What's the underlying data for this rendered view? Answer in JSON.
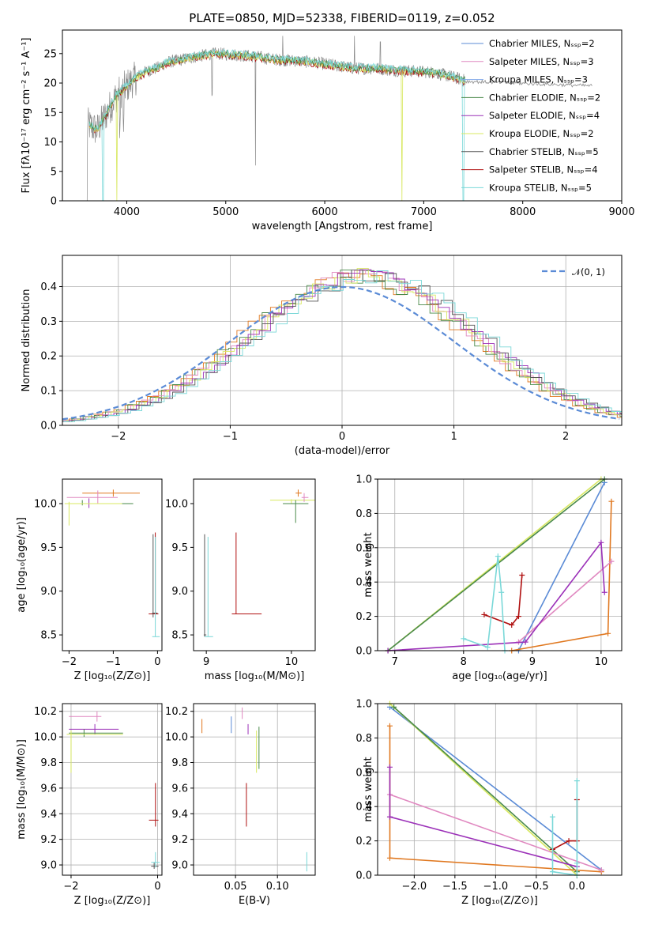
{
  "title": "PLATE=0850, MJD=52338, FIBERID=0119, z=0.052",
  "colors": {
    "chabrier_miles": "#5b8bd6",
    "salpeter_miles": "#e088c0",
    "kroupa_miles": "#7fa6e8",
    "chabrier_elodie": "#4a8a4a",
    "salpeter_elodie": "#9b30b8",
    "kroupa_elodie": "#d8e860",
    "chabrier_stelib": "#555555",
    "salpeter_stelib": "#b01010",
    "kroupa_stelib": "#7ad8d8",
    "data_gray": "#8a8a8a",
    "orange": "#e07820",
    "gaussian": "#5b8bd6"
  },
  "chart_data": [
    {
      "type": "line",
      "panel": "spectrum",
      "xlabel": "wavelength [Angstrom, rest frame]",
      "ylabel": "Flux [fλ10⁻¹⁷ erg cm⁻² s⁻¹ A⁻¹]",
      "xlim": [
        3350,
        9000
      ],
      "ylim": [
        0,
        29
      ],
      "xticks": [
        "4000",
        "5000",
        "6000",
        "7000",
        "8000",
        "9000"
      ],
      "yticks": [
        "0",
        "5",
        "10",
        "15",
        "20",
        "25"
      ],
      "legend_location": "top-right",
      "legend": [
        "Chabrier MILES, Nₛₛₚ=2",
        "Salpeter MILES, Nₛₛₚ=3",
        "Kroupa MILES, Nₛₛₚ=3",
        "Chabrier ELODIE, Nₛₛₚ=2",
        "Salpeter ELODIE, Nₛₛₚ=4",
        "Kroupa ELODIE, Nₛₛₚ=2",
        "Chabrier STELIB, Nₛₛₚ=5",
        "Salpeter STELIB, Nₛₛₚ=4",
        "Kroupa STELIB, Nₛₛₚ=5"
      ],
      "x": [
        3600,
        3700,
        3800,
        3900,
        4000,
        4100,
        4200,
        4300,
        4400,
        4500,
        4700,
        4900,
        5100,
        5300,
        5500,
        5700,
        5900,
        6100,
        6300,
        6500,
        6700,
        6900,
        7100,
        7300,
        7400
      ],
      "y": [
        13,
        12,
        15,
        18,
        19.5,
        21,
        22,
        22.5,
        23.5,
        23.8,
        24.5,
        25,
        24.8,
        24.5,
        24,
        23.8,
        23.5,
        23,
        22.5,
        22.5,
        22.2,
        22,
        21.8,
        21,
        20.5
      ]
    },
    {
      "type": "line",
      "panel": "residual-distribution",
      "xlabel": "(data-model)/error",
      "ylabel": "Normed distribution",
      "xlim": [
        -2.5,
        2.5
      ],
      "ylim": [
        0,
        0.49
      ],
      "xticks": [
        "−2",
        "−1",
        "0",
        "1",
        "2"
      ],
      "yticks": [
        "0.0",
        "0.1",
        "0.2",
        "0.3",
        "0.4"
      ],
      "legend_location": "top-right",
      "legend": [
        "𝒩(0, 1)"
      ],
      "series_gaussian": {
        "mean": 0,
        "sigma": 1
      }
    },
    {
      "type": "scatter",
      "panel": "age-vs-Z",
      "xlabel": "Z [log₁₀(Z/Z⊙)]",
      "ylabel": "age  [log₁₀(age/yr)]",
      "xlim": [
        -2.15,
        0.1
      ],
      "ylim": [
        8.32,
        10.28
      ],
      "xticks": [
        "−2",
        "−1",
        "0"
      ],
      "yticks": [
        "8.5",
        "9.0",
        "9.5",
        "10.0"
      ]
    },
    {
      "type": "scatter",
      "panel": "age-vs-mass",
      "xlabel": "mass [log₁₀(M/M⊙)]",
      "xlim": [
        8.85,
        10.28
      ],
      "ylim": [
        8.32,
        10.28
      ],
      "xticks": [
        "9",
        "10"
      ],
      "yticks": [
        "8.5",
        "9.0",
        "9.5",
        "10.0"
      ]
    },
    {
      "type": "line",
      "panel": "massweight-vs-age",
      "xlabel": "age  [log₁₀(age/yr)]",
      "ylabel": "mass weight",
      "xlim": [
        6.75,
        10.3
      ],
      "ylim": [
        0,
        1
      ],
      "xticks": [
        "7",
        "8",
        "9",
        "10"
      ],
      "yticks": [
        "0.0",
        "0.2",
        "0.4",
        "0.6",
        "0.8",
        "1.0"
      ]
    },
    {
      "type": "scatter",
      "panel": "mass-vs-Z",
      "xlabel": "Z [log₁₀(Z/Z⊙)]",
      "ylabel": "mass [log₁₀(M/M⊙)]",
      "xlim": [
        -2.2,
        0.1
      ],
      "ylim": [
        8.92,
        10.26
      ],
      "xticks": [
        "−2",
        "0"
      ],
      "yticks": [
        "9.0",
        "9.2",
        "9.4",
        "9.6",
        "9.8",
        "10.0",
        "10.2"
      ]
    },
    {
      "type": "scatter",
      "panel": "mass-vs-EBV",
      "xlabel": "E(B-V)",
      "xlim": [
        0.0,
        0.145
      ],
      "ylim": [
        8.92,
        10.26
      ],
      "xticks": [
        "0.05",
        "0.10"
      ],
      "yticks": [
        "9.0",
        "9.2",
        "9.4",
        "9.6",
        "9.8",
        "10.0",
        "10.2"
      ]
    },
    {
      "type": "line",
      "panel": "massweight-vs-Z",
      "xlabel": "Z [log₁₀(Z/Z⊙)]",
      "ylabel": "mass weight",
      "xlim": [
        -2.45,
        0.55
      ],
      "ylim": [
        0,
        1
      ],
      "xticks": [
        "−2.0",
        "−1.5",
        "−1.0",
        "−0.5",
        "0.0"
      ],
      "yticks": [
        "0.0",
        "0.2",
        "0.4",
        "0.6",
        "0.8",
        "1.0"
      ]
    }
  ]
}
